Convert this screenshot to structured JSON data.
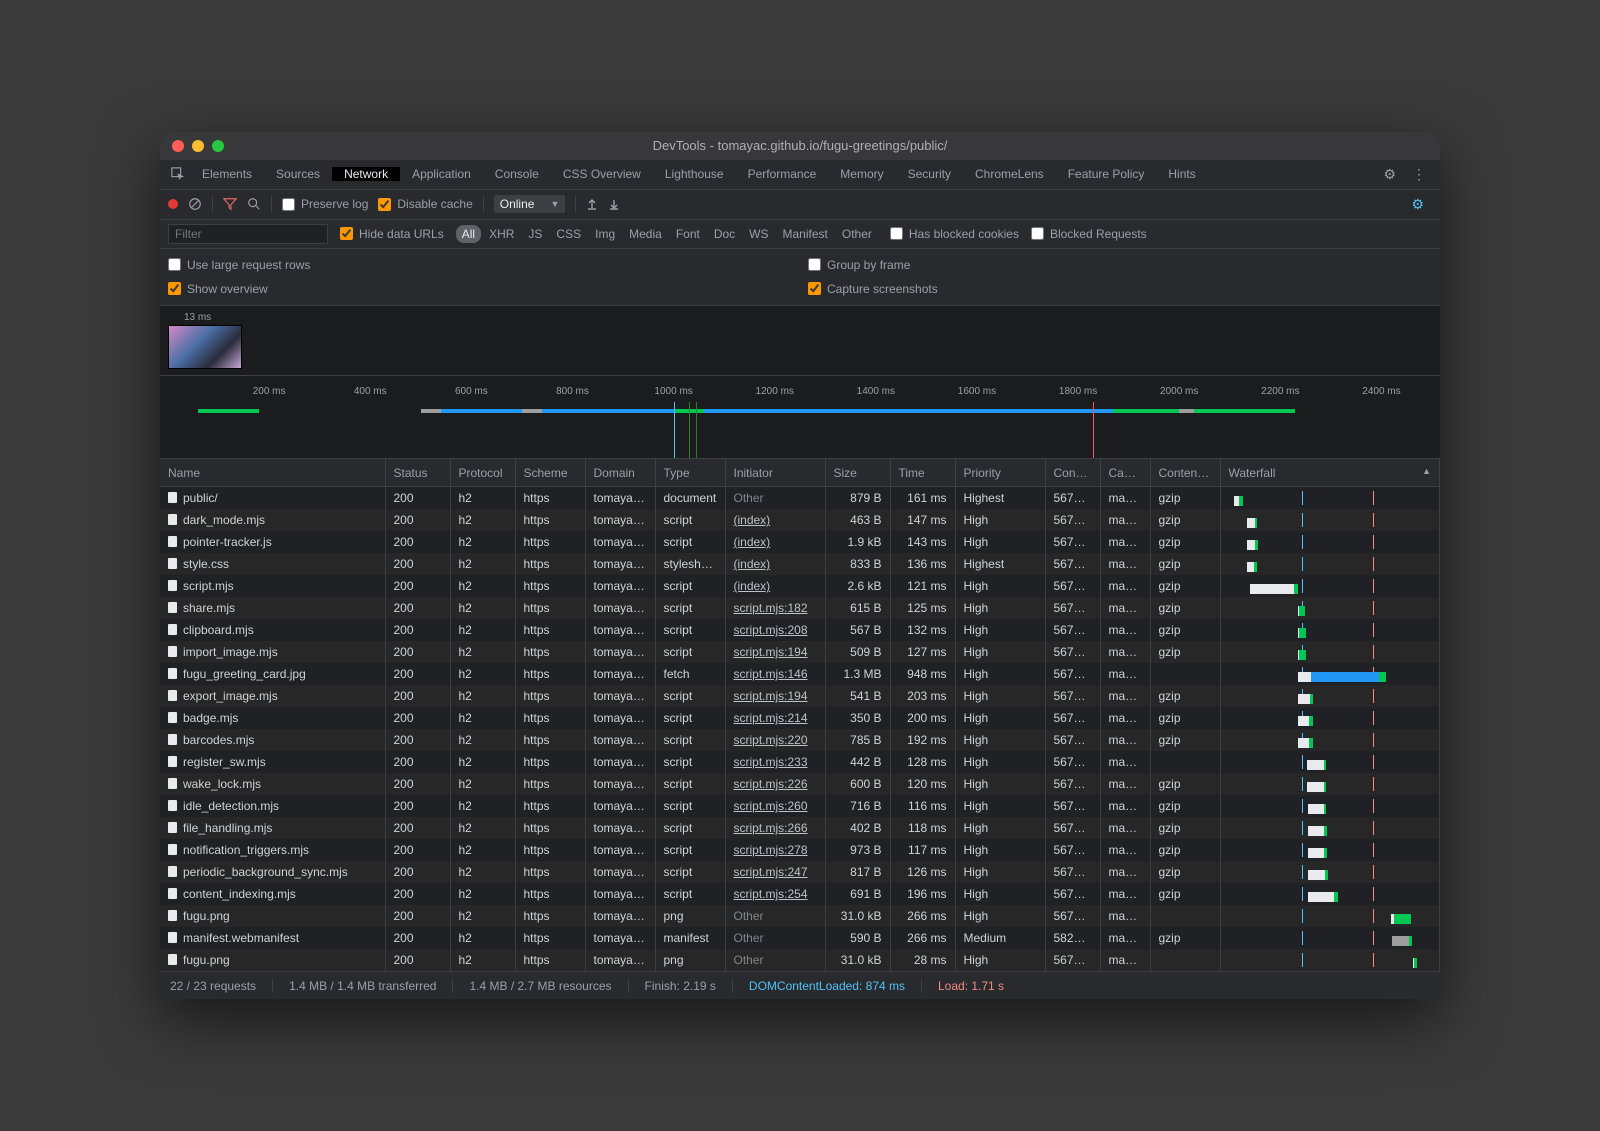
{
  "window": {
    "title": "DevTools - tomayac.github.io/fugu-greetings/public/"
  },
  "tabs": [
    "Elements",
    "Sources",
    "Network",
    "Application",
    "Console",
    "CSS Overview",
    "Lighthouse",
    "Performance",
    "Memory",
    "Security",
    "ChromeLens",
    "Feature Policy",
    "Hints"
  ],
  "active_tab_index": 2,
  "toolbar": {
    "preserve_log": "Preserve log",
    "disable_cache": "Disable cache",
    "throttle": "Online"
  },
  "filterbar": {
    "placeholder": "Filter",
    "hide_data_urls": "Hide data URLs",
    "types": [
      "All",
      "XHR",
      "JS",
      "CSS",
      "Img",
      "Media",
      "Font",
      "Doc",
      "WS",
      "Manifest",
      "Other"
    ],
    "active_type_index": 0,
    "has_blocked_cookies": "Has blocked cookies",
    "blocked_requests": "Blocked Requests"
  },
  "options": {
    "use_large_rows": "Use large request rows",
    "show_overview": "Show overview",
    "group_by_frame": "Group by frame",
    "capture_screenshots": "Capture screenshots"
  },
  "screenshot_label": "13 ms",
  "timeline": {
    "max_ms": 2500,
    "tick_step_ms": 200,
    "ticks": [
      200,
      400,
      600,
      800,
      1000,
      1200,
      1400,
      1600,
      1800,
      2000,
      2200,
      2400
    ],
    "markers": [
      {
        "ms": 1000,
        "color": "#4fc3f7"
      },
      {
        "ms": 1830,
        "color": "#ff5252"
      },
      {
        "ms": 1030,
        "color": "#2e7d32"
      },
      {
        "ms": 1045,
        "color": "#2e7d32"
      }
    ],
    "segments": [
      {
        "start": 60,
        "end": 180,
        "color": "#00c853"
      },
      {
        "start": 500,
        "end": 540,
        "color": "#9e9e9e"
      },
      {
        "start": 540,
        "end": 700,
        "color": "#2196f3"
      },
      {
        "start": 700,
        "end": 740,
        "color": "#9e9e9e"
      },
      {
        "start": 740,
        "end": 1000,
        "color": "#2196f3"
      },
      {
        "start": 1000,
        "end": 1060,
        "color": "#00c853"
      },
      {
        "start": 1060,
        "end": 1870,
        "color": "#2196f3"
      },
      {
        "start": 1870,
        "end": 2000,
        "color": "#00c853"
      },
      {
        "start": 2000,
        "end": 2030,
        "color": "#9e9e9e"
      },
      {
        "start": 2030,
        "end": 2230,
        "color": "#00c853"
      }
    ]
  },
  "columns": [
    "Name",
    "Status",
    "Protocol",
    "Scheme",
    "Domain",
    "Type",
    "Initiator",
    "Size",
    "Time",
    "Priority",
    "Conne…",
    "Cach…",
    "Content-…",
    "Waterfall"
  ],
  "waterfall": {
    "min_ms": 0,
    "max_ms": 2400,
    "markers": [
      {
        "ms": 874,
        "color": "#4fc3f7"
      },
      {
        "ms": 1710,
        "color": "#f28b82"
      }
    ]
  },
  "rows": [
    {
      "name": "public/",
      "status": "200",
      "protocol": "h2",
      "scheme": "https",
      "domain": "tomayac…",
      "type": "document",
      "initiator": "Other",
      "initiator_kind": "other",
      "size": "879 B",
      "time": "161 ms",
      "priority": "Highest",
      "conn": "567671",
      "cache": "max-…",
      "cenc": "gzip",
      "wf": {
        "wait_start": 60,
        "wait_end": 120,
        "dl_start": 120,
        "dl_end": 170,
        "wait_color": "#e8eaed",
        "dl_color": "#00c853"
      }
    },
    {
      "name": "dark_mode.mjs",
      "status": "200",
      "protocol": "h2",
      "scheme": "https",
      "domain": "tomayac…",
      "type": "script",
      "initiator": "(index)",
      "initiator_kind": "link",
      "size": "463 B",
      "time": "147 ms",
      "priority": "High",
      "conn": "567671",
      "cache": "max-…",
      "cenc": "gzip",
      "wf": {
        "wait_start": 220,
        "wait_end": 310,
        "dl_start": 310,
        "dl_end": 340,
        "wait_color": "#e8eaed",
        "dl_color": "#00c853"
      }
    },
    {
      "name": "pointer-tracker.js",
      "status": "200",
      "protocol": "h2",
      "scheme": "https",
      "domain": "tomayac…",
      "type": "script",
      "initiator": "(index)",
      "initiator_kind": "link",
      "size": "1.9 kB",
      "time": "143 ms",
      "priority": "High",
      "conn": "567671",
      "cache": "max-…",
      "cenc": "gzip",
      "wf": {
        "wait_start": 225,
        "wait_end": 310,
        "dl_start": 310,
        "dl_end": 345,
        "wait_color": "#e8eaed",
        "dl_color": "#00c853"
      }
    },
    {
      "name": "style.css",
      "status": "200",
      "protocol": "h2",
      "scheme": "https",
      "domain": "tomayac…",
      "type": "stylesheet",
      "initiator": "(index)",
      "initiator_kind": "link",
      "size": "833 B",
      "time": "136 ms",
      "priority": "Highest",
      "conn": "567671",
      "cache": "max-…",
      "cenc": "gzip",
      "wf": {
        "wait_start": 225,
        "wait_end": 305,
        "dl_start": 305,
        "dl_end": 335,
        "wait_color": "#e8eaed",
        "dl_color": "#00c853"
      }
    },
    {
      "name": "script.mjs",
      "status": "200",
      "protocol": "h2",
      "scheme": "https",
      "domain": "tomayac…",
      "type": "script",
      "initiator": "(index)",
      "initiator_kind": "link",
      "size": "2.6 kB",
      "time": "121 ms",
      "priority": "High",
      "conn": "567671",
      "cache": "max-…",
      "cenc": "gzip",
      "wf": {
        "wait_start": 250,
        "wait_end": 780,
        "dl_start": 780,
        "dl_end": 818,
        "wait_color": "#e8eaed",
        "dl_color": "#00c853"
      }
    },
    {
      "name": "share.mjs",
      "status": "200",
      "protocol": "h2",
      "scheme": "https",
      "domain": "tomayac…",
      "type": "script",
      "initiator": "script.mjs:182",
      "initiator_kind": "link",
      "size": "615 B",
      "time": "125 ms",
      "priority": "High",
      "conn": "567671",
      "cache": "max-…",
      "cenc": "gzip",
      "wf": {
        "wait_start": 820,
        "wait_end": 830,
        "dl_start": 830,
        "dl_end": 910,
        "wait_color": "#e8eaed",
        "dl_color": "#00c853"
      }
    },
    {
      "name": "clipboard.mjs",
      "status": "200",
      "protocol": "h2",
      "scheme": "https",
      "domain": "tomayac…",
      "type": "script",
      "initiator": "script.mjs:208",
      "initiator_kind": "link",
      "size": "567 B",
      "time": "132 ms",
      "priority": "High",
      "conn": "567671",
      "cache": "max-…",
      "cenc": "gzip",
      "wf": {
        "wait_start": 820,
        "wait_end": 835,
        "dl_start": 835,
        "dl_end": 920,
        "wait_color": "#e8eaed",
        "dl_color": "#00c853"
      }
    },
    {
      "name": "import_image.mjs",
      "status": "200",
      "protocol": "h2",
      "scheme": "https",
      "domain": "tomayac…",
      "type": "script",
      "initiator": "script.mjs:194",
      "initiator_kind": "link",
      "size": "509 B",
      "time": "127 ms",
      "priority": "High",
      "conn": "567671",
      "cache": "max-…",
      "cenc": "gzip",
      "wf": {
        "wait_start": 820,
        "wait_end": 830,
        "dl_start": 830,
        "dl_end": 915,
        "wait_color": "#e8eaed",
        "dl_color": "#00c853"
      }
    },
    {
      "name": "fugu_greeting_card.jpg",
      "status": "200",
      "protocol": "h2",
      "scheme": "https",
      "domain": "tomayac…",
      "type": "fetch",
      "initiator": "script.mjs:146",
      "initiator_kind": "link",
      "size": "1.3 MB",
      "time": "948 ms",
      "priority": "High",
      "conn": "567671",
      "cache": "max-…",
      "cenc": "",
      "wf": {
        "wait_start": 820,
        "wait_end": 980,
        "dl_start": 980,
        "dl_end": 1780,
        "wait_color": "#e8eaed",
        "dl_color": "#2196f3",
        "extra_start": 1780,
        "extra_end": 1870,
        "extra_color": "#00c853"
      }
    },
    {
      "name": "export_image.mjs",
      "status": "200",
      "protocol": "h2",
      "scheme": "https",
      "domain": "tomayac…",
      "type": "script",
      "initiator": "script.mjs:194",
      "initiator_kind": "link",
      "size": "541 B",
      "time": "203 ms",
      "priority": "High",
      "conn": "567671",
      "cache": "max-…",
      "cenc": "gzip",
      "wf": {
        "wait_start": 825,
        "wait_end": 960,
        "dl_start": 960,
        "dl_end": 1005,
        "wait_color": "#e8eaed",
        "dl_color": "#00c853"
      }
    },
    {
      "name": "badge.mjs",
      "status": "200",
      "protocol": "h2",
      "scheme": "https",
      "domain": "tomayac…",
      "type": "script",
      "initiator": "script.mjs:214",
      "initiator_kind": "link",
      "size": "350 B",
      "time": "200 ms",
      "priority": "High",
      "conn": "567671",
      "cache": "max-…",
      "cenc": "gzip",
      "wf": {
        "wait_start": 825,
        "wait_end": 955,
        "dl_start": 955,
        "dl_end": 1000,
        "wait_color": "#e8eaed",
        "dl_color": "#00c853"
      }
    },
    {
      "name": "barcodes.mjs",
      "status": "200",
      "protocol": "h2",
      "scheme": "https",
      "domain": "tomayac…",
      "type": "script",
      "initiator": "script.mjs:220",
      "initiator_kind": "link",
      "size": "785 B",
      "time": "192 ms",
      "priority": "High",
      "conn": "567671",
      "cache": "max-…",
      "cenc": "gzip",
      "wf": {
        "wait_start": 825,
        "wait_end": 950,
        "dl_start": 950,
        "dl_end": 998,
        "wait_color": "#e8eaed",
        "dl_color": "#00c853"
      }
    },
    {
      "name": "register_sw.mjs",
      "status": "200",
      "protocol": "h2",
      "scheme": "https",
      "domain": "tomayac…",
      "type": "script",
      "initiator": "script.mjs:233",
      "initiator_kind": "link",
      "size": "442 B",
      "time": "128 ms",
      "priority": "High",
      "conn": "567671",
      "cache": "max-…",
      "cenc": "",
      "wf": {
        "wait_start": 930,
        "wait_end": 1130,
        "dl_start": 1130,
        "dl_end": 1160,
        "wait_color": "#e8eaed",
        "dl_color": "#00c853"
      }
    },
    {
      "name": "wake_lock.mjs",
      "status": "200",
      "protocol": "h2",
      "scheme": "https",
      "domain": "tomayac…",
      "type": "script",
      "initiator": "script.mjs:226",
      "initiator_kind": "link",
      "size": "600 B",
      "time": "120 ms",
      "priority": "High",
      "conn": "567671",
      "cache": "max-…",
      "cenc": "gzip",
      "wf": {
        "wait_start": 935,
        "wait_end": 1130,
        "dl_start": 1130,
        "dl_end": 1158,
        "wait_color": "#e8eaed",
        "dl_color": "#00c853"
      }
    },
    {
      "name": "idle_detection.mjs",
      "status": "200",
      "protocol": "h2",
      "scheme": "https",
      "domain": "tomayac…",
      "type": "script",
      "initiator": "script.mjs:260",
      "initiator_kind": "link",
      "size": "716 B",
      "time": "116 ms",
      "priority": "High",
      "conn": "567671",
      "cache": "max-…",
      "cenc": "gzip",
      "wf": {
        "wait_start": 940,
        "wait_end": 1130,
        "dl_start": 1130,
        "dl_end": 1156,
        "wait_color": "#e8eaed",
        "dl_color": "#00c853"
      }
    },
    {
      "name": "file_handling.mjs",
      "status": "200",
      "protocol": "h2",
      "scheme": "https",
      "domain": "tomayac…",
      "type": "script",
      "initiator": "script.mjs:266",
      "initiator_kind": "link",
      "size": "402 B",
      "time": "118 ms",
      "priority": "High",
      "conn": "567671",
      "cache": "max-…",
      "cenc": "gzip",
      "wf": {
        "wait_start": 940,
        "wait_end": 1135,
        "dl_start": 1135,
        "dl_end": 1170,
        "wait_color": "#e8eaed",
        "dl_color": "#00c853"
      }
    },
    {
      "name": "notification_triggers.mjs",
      "status": "200",
      "protocol": "h2",
      "scheme": "https",
      "domain": "tomayac…",
      "type": "script",
      "initiator": "script.mjs:278",
      "initiator_kind": "link",
      "size": "973 B",
      "time": "117 ms",
      "priority": "High",
      "conn": "567671",
      "cache": "max-…",
      "cenc": "gzip",
      "wf": {
        "wait_start": 945,
        "wait_end": 1135,
        "dl_start": 1135,
        "dl_end": 1170,
        "wait_color": "#e8eaed",
        "dl_color": "#00c853"
      }
    },
    {
      "name": "periodic_background_sync.mjs",
      "status": "200",
      "protocol": "h2",
      "scheme": "https",
      "domain": "tomayac…",
      "type": "script",
      "initiator": "script.mjs:247",
      "initiator_kind": "link",
      "size": "817 B",
      "time": "126 ms",
      "priority": "High",
      "conn": "567671",
      "cache": "max-…",
      "cenc": "gzip",
      "wf": {
        "wait_start": 945,
        "wait_end": 1140,
        "dl_start": 1140,
        "dl_end": 1180,
        "wait_color": "#e8eaed",
        "dl_color": "#00c853"
      }
    },
    {
      "name": "content_indexing.mjs",
      "status": "200",
      "protocol": "h2",
      "scheme": "https",
      "domain": "tomayac…",
      "type": "script",
      "initiator": "script.mjs:254",
      "initiator_kind": "link",
      "size": "691 B",
      "time": "196 ms",
      "priority": "High",
      "conn": "567671",
      "cache": "max-…",
      "cenc": "gzip",
      "wf": {
        "wait_start": 945,
        "wait_end": 1250,
        "dl_start": 1250,
        "dl_end": 1300,
        "wait_color": "#e8eaed",
        "dl_color": "#00c853"
      }
    },
    {
      "name": "fugu.png",
      "status": "200",
      "protocol": "h2",
      "scheme": "https",
      "domain": "tomayac…",
      "type": "png",
      "initiator": "Other",
      "initiator_kind": "other",
      "size": "31.0 kB",
      "time": "266 ms",
      "priority": "High",
      "conn": "567671",
      "cache": "max-…",
      "cenc": "",
      "wf": {
        "wait_start": 1930,
        "wait_end": 1960,
        "dl_start": 1960,
        "dl_end": 2160,
        "wait_color": "#e8eaed",
        "dl_color": "#00c853"
      }
    },
    {
      "name": "manifest.webmanifest",
      "status": "200",
      "protocol": "h2",
      "scheme": "https",
      "domain": "tomayac…",
      "type": "manifest",
      "initiator": "Other",
      "initiator_kind": "other",
      "size": "590 B",
      "time": "266 ms",
      "priority": "Medium",
      "conn": "582612",
      "cache": "max-…",
      "cenc": "gzip",
      "wf": {
        "wait_start": 1940,
        "wait_end": 2140,
        "dl_start": 2140,
        "dl_end": 2175,
        "wait_color": "#9e9e9e",
        "dl_color": "#00c853"
      }
    },
    {
      "name": "fugu.png",
      "status": "200",
      "protocol": "h2",
      "scheme": "https",
      "domain": "tomayac…",
      "type": "png",
      "initiator": "Other",
      "initiator_kind": "other",
      "size": "31.0 kB",
      "time": "28 ms",
      "priority": "High",
      "conn": "567671",
      "cache": "max-…",
      "cenc": "",
      "wf": {
        "wait_start": 2190,
        "wait_end": 2200,
        "dl_start": 2200,
        "dl_end": 2230,
        "wait_color": "#e8eaed",
        "dl_color": "#00c853"
      }
    }
  ],
  "statusbar": {
    "requests": "22 / 23 requests",
    "transferred": "1.4 MB / 1.4 MB transferred",
    "resources": "1.4 MB / 2.7 MB resources",
    "finish": "Finish: 2.19 s",
    "dcl": "DOMContentLoaded: 874 ms",
    "load": "Load: 1.71 s"
  },
  "colors": {
    "bg": "#202124",
    "panel": "#292a2d",
    "border": "#3c4043",
    "text": "#e8eaed",
    "muted": "#9aa0a6",
    "accent": "#ff9800",
    "blue": "#4fc3f7",
    "red": "#f28b82",
    "green": "#00c853"
  }
}
